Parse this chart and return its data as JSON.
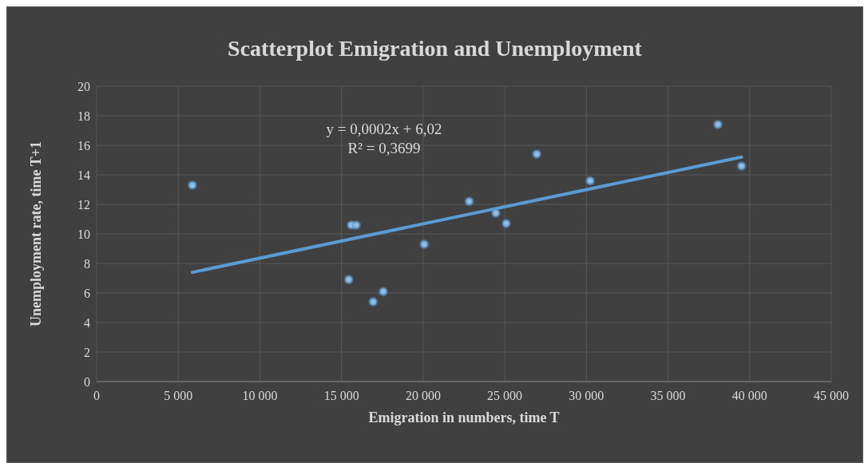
{
  "chart_data": {
    "type": "scatter",
    "title": "Scatterplot Emigration and Unemployment",
    "xlabel": "Emigration in numbers, time T",
    "ylabel": "Unemployment rate, time T+1",
    "series": [
      {
        "color": "#9dc3e6",
        "marker": "circle",
        "x": [
          5865,
          15445,
          15600,
          15900,
          16940,
          17560,
          20070,
          22825,
          24450,
          25090,
          26960,
          30235,
          38055,
          39505
        ],
        "values": [
          13.3,
          6.9,
          10.6,
          10.6,
          5.4,
          6.1,
          9.3,
          12.2,
          11.4,
          10.7,
          15.4,
          13.6,
          17.4,
          14.6
        ]
      },
      {
        "type": "line",
        "marker": "none",
        "color": "#5b9bd5",
        "x": [
          5865,
          39505
        ],
        "values": [
          7.4,
          15.2
        ]
      }
    ],
    "annotations": [
      "y = 0,0002x + 6,02",
      "R² = 0,3699"
    ],
    "xlim": [
      0,
      45000
    ],
    "xticks": [
      0,
      {
        "value": 5000,
        "label": "5 000"
      },
      {
        "value": 10000,
        "label": "10 000"
      },
      {
        "value": 15000,
        "label": "15 000"
      },
      {
        "value": 20000,
        "label": "20 000"
      },
      {
        "value": 25000,
        "label": "25 000"
      },
      {
        "value": 30000,
        "label": "30 000"
      },
      {
        "value": 35000,
        "label": "35 000"
      },
      {
        "value": 40000,
        "label": "40 000"
      },
      {
        "value": 45000,
        "label": "45 000"
      }
    ],
    "ylim": [
      0,
      20
    ],
    "yticks": [
      0,
      2,
      4,
      6,
      8,
      10,
      12,
      14,
      16,
      18,
      20
    ],
    "grid": true
  }
}
